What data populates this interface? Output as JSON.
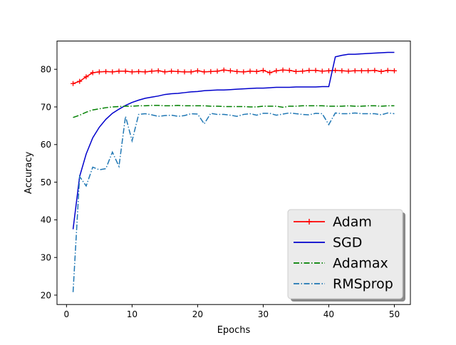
{
  "chart_data": {
    "type": "line",
    "title": "",
    "xlabel": "Epochs",
    "ylabel": "Accuracy",
    "xlim": [
      -1.45,
      52.45
    ],
    "ylim": [
      17.5,
      87.5
    ],
    "x_ticks": [
      0,
      10,
      20,
      30,
      40,
      50
    ],
    "y_ticks": [
      20,
      30,
      40,
      50,
      60,
      70,
      80
    ],
    "grid": false,
    "legend_position": "bottom-right",
    "x": [
      1,
      2,
      3,
      4,
      5,
      6,
      7,
      8,
      9,
      10,
      11,
      12,
      13,
      14,
      15,
      16,
      17,
      18,
      19,
      20,
      21,
      22,
      23,
      24,
      25,
      26,
      27,
      28,
      29,
      30,
      31,
      32,
      33,
      34,
      35,
      36,
      37,
      38,
      39,
      40,
      41,
      42,
      43,
      44,
      45,
      46,
      47,
      48,
      49,
      50
    ],
    "series": [
      {
        "name": "Adam",
        "color": "#ff0000",
        "style": "solid",
        "marker": "plus",
        "values": [
          76.2,
          76.8,
          78.0,
          79.1,
          79.3,
          79.4,
          79.3,
          79.5,
          79.5,
          79.3,
          79.4,
          79.3,
          79.5,
          79.6,
          79.3,
          79.5,
          79.4,
          79.3,
          79.3,
          79.6,
          79.3,
          79.4,
          79.5,
          79.8,
          79.6,
          79.4,
          79.3,
          79.5,
          79.4,
          79.7,
          79.1,
          79.6,
          79.8,
          79.7,
          79.4,
          79.5,
          79.7,
          79.7,
          79.5,
          79.6,
          79.7,
          79.6,
          79.5,
          79.6,
          79.6,
          79.6,
          79.7,
          79.4,
          79.7,
          79.6
        ]
      },
      {
        "name": "SGD",
        "color": "#0000cc",
        "style": "solid",
        "marker": "none",
        "values": [
          37.5,
          51.5,
          57.5,
          61.8,
          64.6,
          66.7,
          68.3,
          69.4,
          70.4,
          71.2,
          71.8,
          72.3,
          72.6,
          72.9,
          73.3,
          73.5,
          73.6,
          73.8,
          74.0,
          74.1,
          74.3,
          74.4,
          74.5,
          74.5,
          74.6,
          74.7,
          74.8,
          74.9,
          75.0,
          75.0,
          75.1,
          75.2,
          75.2,
          75.2,
          75.3,
          75.3,
          75.3,
          75.3,
          75.4,
          75.4,
          83.3,
          83.7,
          84.0,
          84.0,
          84.1,
          84.2,
          84.3,
          84.4,
          84.5,
          84.5
        ]
      },
      {
        "name": "Adamax",
        "color": "#008000",
        "style": "dashdot",
        "marker": "none",
        "values": [
          67.2,
          67.8,
          68.6,
          69.2,
          69.5,
          69.8,
          70.0,
          70.1,
          70.2,
          70.2,
          70.3,
          70.3,
          70.4,
          70.4,
          70.3,
          70.3,
          70.4,
          70.3,
          70.3,
          70.3,
          70.3,
          70.2,
          70.2,
          70.1,
          70.1,
          70.1,
          70.1,
          70.0,
          70.0,
          70.2,
          70.2,
          70.2,
          69.9,
          70.2,
          70.2,
          70.3,
          70.3,
          70.3,
          70.3,
          70.2,
          70.2,
          70.2,
          70.3,
          70.2,
          70.2,
          70.3,
          70.3,
          70.2,
          70.3,
          70.3
        ]
      },
      {
        "name": "RMSprop",
        "color": "#1f77b4",
        "style": "dashdot",
        "marker": "none",
        "values": [
          20.8,
          51.5,
          49.0,
          54.0,
          53.3,
          53.6,
          58.0,
          54.2,
          67.5,
          61.0,
          68.0,
          68.2,
          67.9,
          67.5,
          67.7,
          67.8,
          67.5,
          67.7,
          68.2,
          68.1,
          65.5,
          68.3,
          68.0,
          68.0,
          67.8,
          67.5,
          68.0,
          68.2,
          67.8,
          68.3,
          68.3,
          67.8,
          68.1,
          68.4,
          68.2,
          68.0,
          67.9,
          68.3,
          68.2,
          65.3,
          68.4,
          68.2,
          68.2,
          68.4,
          68.2,
          68.2,
          68.2,
          67.9,
          68.4,
          68.2
        ]
      }
    ]
  }
}
